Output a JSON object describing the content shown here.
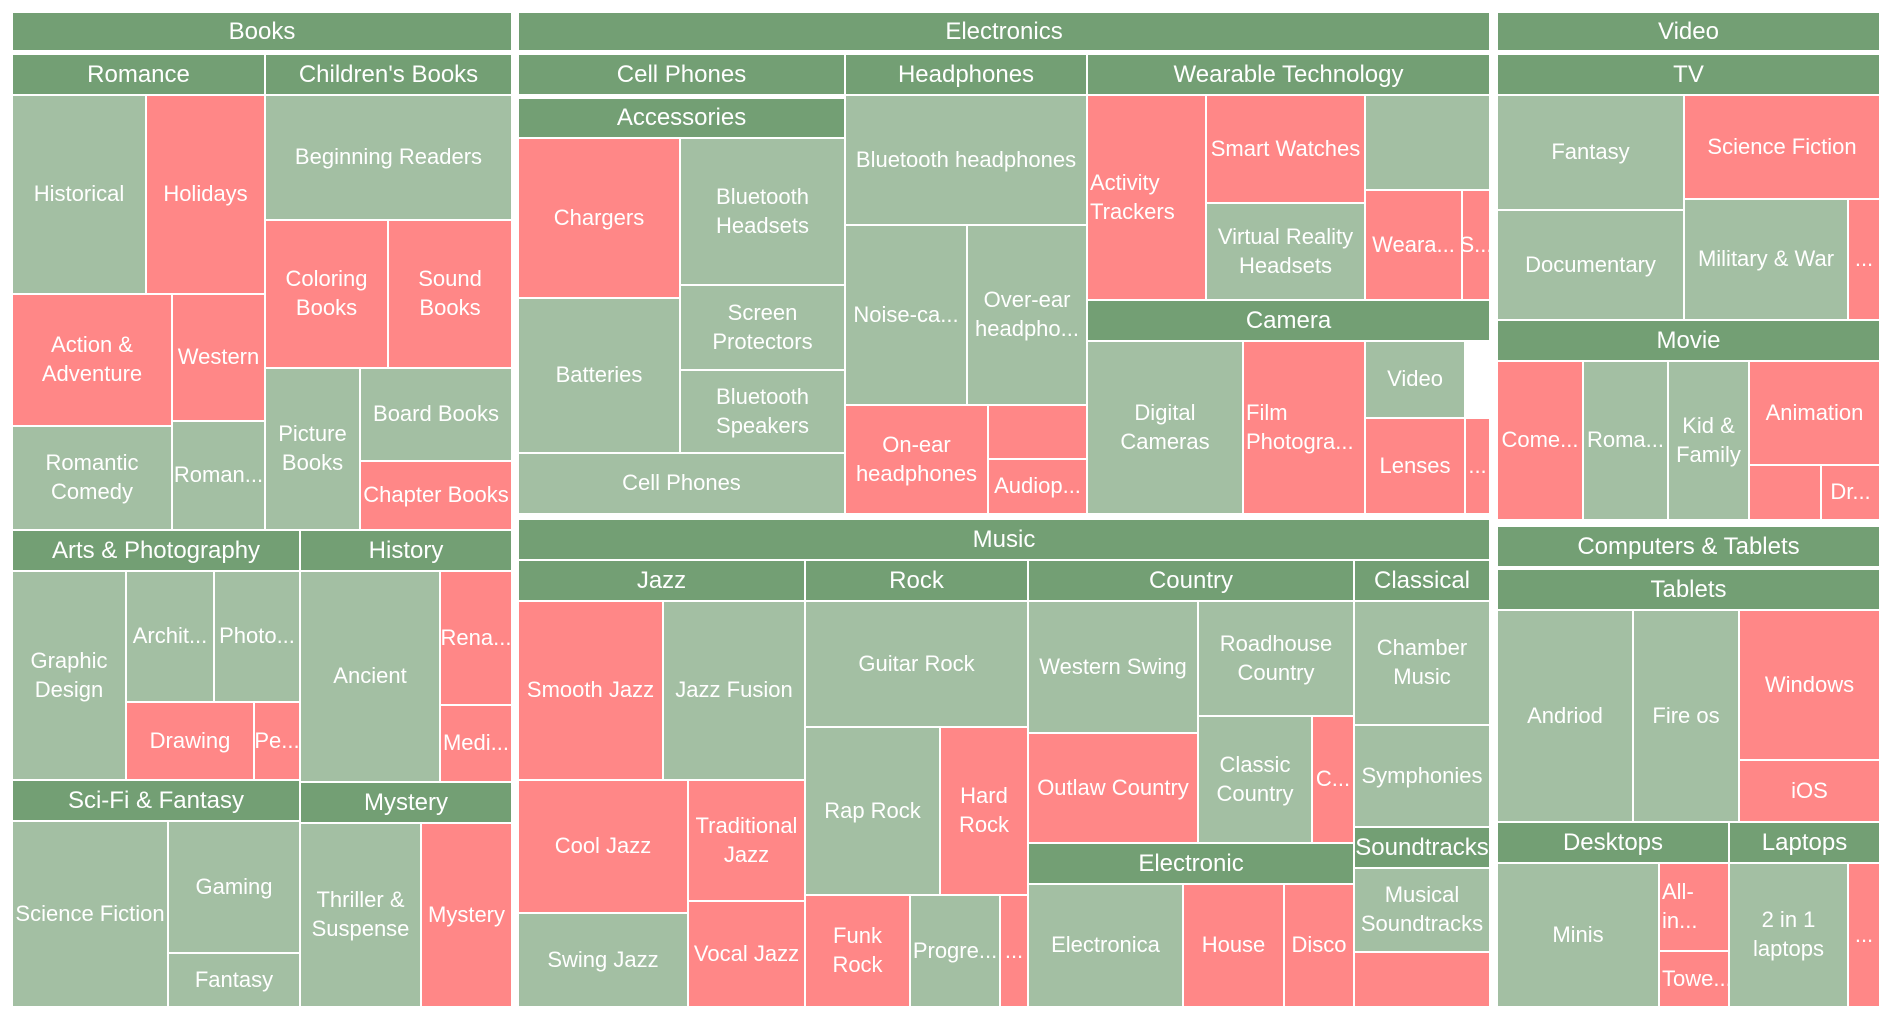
{
  "chart_data": {
    "type": "treemap",
    "title": "",
    "colors": {
      "header": "#739f74",
      "green": "#a3bfa3",
      "red": "#ff8787",
      "text": "#ffffff"
    },
    "headers": [
      {
        "label": "Books"
      },
      {
        "label": "Electronics"
      },
      {
        "label": "Video"
      },
      {
        "label": "Romance"
      },
      {
        "label": "Children's Books"
      },
      {
        "label": "Arts & Photography"
      },
      {
        "label": "History"
      },
      {
        "label": "Sci-Fi & Fantasy"
      },
      {
        "label": "Mystery"
      },
      {
        "label": "Cell Phones"
      },
      {
        "label": "Accessories"
      },
      {
        "label": "Headphones"
      },
      {
        "label": "Wearable Technology"
      },
      {
        "label": "Camera"
      },
      {
        "label": "Music"
      },
      {
        "label": "Jazz"
      },
      {
        "label": "Rock"
      },
      {
        "label": "Country"
      },
      {
        "label": "Classical"
      },
      {
        "label": "Electronic"
      },
      {
        "label": "Soundtracks"
      },
      {
        "label": "TV"
      },
      {
        "label": "Movie"
      },
      {
        "label": "Computers & Tablets"
      },
      {
        "label": "Tablets"
      },
      {
        "label": "Desktops"
      },
      {
        "label": "Laptops"
      }
    ],
    "leaves": [
      {
        "label": "Historical",
        "color": "green"
      },
      {
        "label": "Holidays",
        "color": "red"
      },
      {
        "label": "Action & Adventure",
        "color": "red"
      },
      {
        "label": "Western",
        "color": "red"
      },
      {
        "label": "Romantic Comedy",
        "color": "green"
      },
      {
        "label": "Roman...",
        "color": "green"
      },
      {
        "label": "Beginning Readers",
        "color": "green"
      },
      {
        "label": "Coloring Books",
        "color": "red"
      },
      {
        "label": "Sound Books",
        "color": "red"
      },
      {
        "label": "Picture Books",
        "color": "green"
      },
      {
        "label": "Board Books",
        "color": "green"
      },
      {
        "label": "Chapter Books",
        "color": "red"
      },
      {
        "label": "Graphic Design",
        "color": "green"
      },
      {
        "label": "Archit...",
        "color": "green"
      },
      {
        "label": "Photo...",
        "color": "green"
      },
      {
        "label": "Drawing",
        "color": "red"
      },
      {
        "label": "Pe...",
        "color": "red"
      },
      {
        "label": "Ancient",
        "color": "green"
      },
      {
        "label": "Rena...",
        "color": "red"
      },
      {
        "label": "Medi...",
        "color": "red"
      },
      {
        "label": "Science Fiction",
        "color": "green"
      },
      {
        "label": "Gaming",
        "color": "green"
      },
      {
        "label": "Fantasy",
        "color": "green"
      },
      {
        "label": "Thriller & Suspense",
        "color": "green"
      },
      {
        "label": "Mystery",
        "color": "red"
      },
      {
        "label": "Chargers",
        "color": "red"
      },
      {
        "label": "Bluetooth Headsets",
        "color": "green"
      },
      {
        "label": "Batteries",
        "color": "green"
      },
      {
        "label": "Screen Protectors",
        "color": "green"
      },
      {
        "label": "Bluetooth Speakers",
        "color": "green"
      },
      {
        "label": "Cell Phones",
        "color": "green"
      },
      {
        "label": "Bluetooth headphones",
        "color": "green"
      },
      {
        "label": "Noise-ca...",
        "color": "green"
      },
      {
        "label": "Over-ear headpho...",
        "color": "green"
      },
      {
        "label": "On-ear headphones",
        "color": "red"
      },
      {
        "label": "",
        "color": "red"
      },
      {
        "label": "Audiop...",
        "color": "red"
      },
      {
        "label": "Activity Trackers",
        "color": "red"
      },
      {
        "label": "Smart Watches",
        "color": "red"
      },
      {
        "label": "",
        "color": "green"
      },
      {
        "label": "Virtual Reality Headsets",
        "color": "green"
      },
      {
        "label": "Weara...",
        "color": "red"
      },
      {
        "label": "S...",
        "color": "red"
      },
      {
        "label": "Digital Cameras",
        "color": "green"
      },
      {
        "label": "Film Photogra...",
        "color": "red"
      },
      {
        "label": "Video",
        "color": "green"
      },
      {
        "label": "Lenses",
        "color": "red"
      },
      {
        "label": "...",
        "color": "red"
      },
      {
        "label": "Smooth Jazz",
        "color": "red"
      },
      {
        "label": "Jazz Fusion",
        "color": "green"
      },
      {
        "label": "Cool Jazz",
        "color": "red"
      },
      {
        "label": "Traditional Jazz",
        "color": "red"
      },
      {
        "label": "Swing Jazz",
        "color": "green"
      },
      {
        "label": "Vocal Jazz",
        "color": "red"
      },
      {
        "label": "Guitar Rock",
        "color": "green"
      },
      {
        "label": "Rap Rock",
        "color": "green"
      },
      {
        "label": "Hard Rock",
        "color": "red"
      },
      {
        "label": "Funk Rock",
        "color": "red"
      },
      {
        "label": "Progre...",
        "color": "green"
      },
      {
        "label": "...",
        "color": "red"
      },
      {
        "label": "Western Swing",
        "color": "green"
      },
      {
        "label": "Roadhouse Country",
        "color": "green"
      },
      {
        "label": "Classic Country",
        "color": "green"
      },
      {
        "label": "Outlaw Country",
        "color": "red"
      },
      {
        "label": "C...",
        "color": "red"
      },
      {
        "label": "Chamber Music",
        "color": "green"
      },
      {
        "label": "Symphonies",
        "color": "green"
      },
      {
        "label": "Electronica",
        "color": "green"
      },
      {
        "label": "House",
        "color": "red"
      },
      {
        "label": "Disco",
        "color": "red"
      },
      {
        "label": "Musical Soundtracks",
        "color": "green"
      },
      {
        "label": "",
        "color": "red"
      },
      {
        "label": "Fantasy",
        "color": "green"
      },
      {
        "label": "Science Fiction",
        "color": "red"
      },
      {
        "label": "Documentary",
        "color": "green"
      },
      {
        "label": "Military & War",
        "color": "green"
      },
      {
        "label": "...",
        "color": "red"
      },
      {
        "label": "Come...",
        "color": "red"
      },
      {
        "label": "Roma...",
        "color": "green"
      },
      {
        "label": "Kid & Family",
        "color": "green"
      },
      {
        "label": "Animation",
        "color": "red"
      },
      {
        "label": "",
        "color": "red"
      },
      {
        "label": "Dr...",
        "color": "red"
      },
      {
        "label": "Andriod",
        "color": "green"
      },
      {
        "label": "Fire os",
        "color": "green"
      },
      {
        "label": "Windows",
        "color": "red"
      },
      {
        "label": "iOS",
        "color": "red"
      },
      {
        "label": "Minis",
        "color": "green"
      },
      {
        "label": "All-in...",
        "color": "red"
      },
      {
        "label": "Towe...",
        "color": "red"
      },
      {
        "label": "2 in 1 laptops",
        "color": "green"
      },
      {
        "label": "...",
        "color": "red"
      }
    ]
  }
}
